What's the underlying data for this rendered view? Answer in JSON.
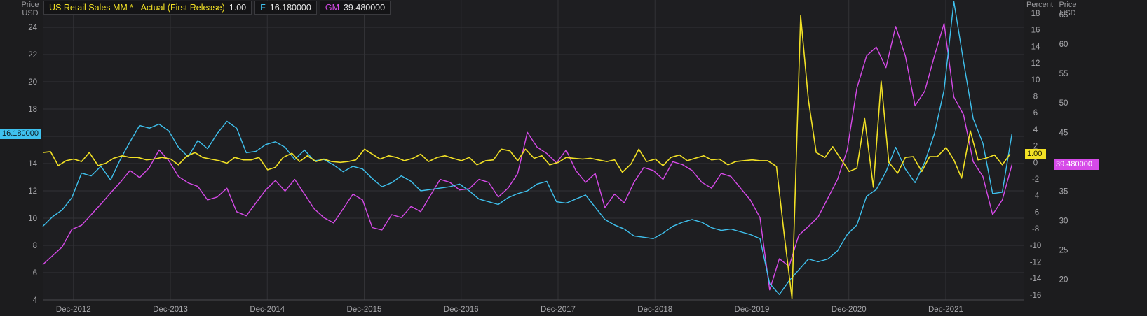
{
  "legend": [
    {
      "name": "US Retail Sales MM * - Actual (First Release)",
      "value": "1.00",
      "color": "#f2e125"
    },
    {
      "name": "F",
      "value": "16.180000",
      "color": "#3fc1ee"
    },
    {
      "name": "GM",
      "value": "39.480000",
      "color": "#d64ae8"
    }
  ],
  "axes": {
    "left_title_1": "Price",
    "left_title_2": "USD",
    "right1_title": "Percent",
    "right2_title_1": "Price",
    "right2_title_2": "USD"
  },
  "tags": {
    "left": "16.180000",
    "right1": "1.00",
    "right2": "39.480000"
  },
  "colors": {
    "background": "#1c1c1e",
    "retail": "#f2e125",
    "f": "#3fc1ee",
    "gm": "#d64ae8",
    "grid": "#323236"
  },
  "chart_data": {
    "type": "line",
    "x_ticks": [
      "Dec-2012",
      "Dec-2013",
      "Dec-2014",
      "Dec-2015",
      "Dec-2016",
      "Dec-2017",
      "Dec-2018",
      "Dec-2019",
      "Dec-2020",
      "Dec-2021"
    ],
    "x_range": [
      2012.6,
      2022.72
    ],
    "left_axis": {
      "unit": "Price USD",
      "range": [
        4,
        26
      ],
      "ticks": [
        4,
        6,
        8,
        10,
        12,
        14,
        16,
        18,
        20,
        22,
        24
      ]
    },
    "right_axis_percent": {
      "unit": "Percent",
      "range": [
        -16.6,
        19.6
      ],
      "ticks": [
        -16,
        -14,
        -12,
        -10,
        -8,
        -6,
        -4,
        -2,
        0,
        2,
        4,
        6,
        8,
        10,
        12,
        14,
        16,
        18
      ]
    },
    "right_axis_price": {
      "unit": "Price USD",
      "range": [
        16.5,
        67.5
      ],
      "ticks": [
        20,
        25,
        30,
        35,
        40,
        45,
        50,
        55,
        60,
        65
      ]
    },
    "series": [
      {
        "name": "US Retail Sales MM * - Actual (First Release)",
        "axis": "right_axis_percent",
        "x": [
          2012.6,
          2012.68,
          2012.76,
          2012.84,
          2012.92,
          2013.0,
          2013.08,
          2013.17,
          2013.25,
          2013.33,
          2013.42,
          2013.5,
          2013.58,
          2013.67,
          2013.75,
          2013.83,
          2013.92,
          2014.0,
          2014.08,
          2014.17,
          2014.25,
          2014.33,
          2014.42,
          2014.5,
          2014.58,
          2014.67,
          2014.75,
          2014.83,
          2014.92,
          2015.0,
          2015.08,
          2015.17,
          2015.25,
          2015.33,
          2015.42,
          2015.5,
          2015.58,
          2015.67,
          2015.75,
          2015.83,
          2015.92,
          2016.0,
          2016.08,
          2016.17,
          2016.25,
          2016.33,
          2016.42,
          2016.5,
          2016.58,
          2016.67,
          2016.75,
          2016.83,
          2016.92,
          2017.0,
          2017.08,
          2017.17,
          2017.25,
          2017.33,
          2017.42,
          2017.5,
          2017.58,
          2017.67,
          2017.75,
          2017.83,
          2017.92,
          2018.0,
          2018.08,
          2018.17,
          2018.25,
          2018.33,
          2018.42,
          2018.5,
          2018.58,
          2018.67,
          2018.75,
          2018.83,
          2018.92,
          2019.0,
          2019.08,
          2019.17,
          2019.25,
          2019.33,
          2019.42,
          2019.5,
          2019.58,
          2019.67,
          2019.75,
          2019.83,
          2019.92,
          2020.0,
          2020.08,
          2020.17,
          2020.25,
          2020.33,
          2020.42,
          2020.5,
          2020.58,
          2020.67,
          2020.75,
          2020.83,
          2020.92,
          2021.0,
          2021.08,
          2021.17,
          2021.25,
          2021.33,
          2021.42,
          2021.5,
          2021.58,
          2021.67,
          2021.75,
          2021.83,
          2021.92,
          2022.0,
          2022.08,
          2022.17,
          2022.25,
          2022.33,
          2022.42,
          2022.5,
          2022.58
        ],
        "values": [
          1.2,
          1.3,
          -0.4,
          0.2,
          0.4,
          0.1,
          1.2,
          -0.4,
          -0.1,
          0.5,
          0.8,
          0.6,
          0.6,
          0.3,
          0.4,
          0.6,
          0.4,
          -0.3,
          0.7,
          1.2,
          0.6,
          0.4,
          0.2,
          -0.1,
          0.6,
          0.3,
          0.3,
          0.6,
          -0.9,
          -0.6,
          0.6,
          1.1,
          0.1,
          0.8,
          0.1,
          0.4,
          0.1,
          0.0,
          0.1,
          0.3,
          1.6,
          1.0,
          0.4,
          0.8,
          0.6,
          0.2,
          0.5,
          1.0,
          0.1,
          0.6,
          0.8,
          0.5,
          0.2,
          0.6,
          -0.3,
          0.2,
          0.3,
          1.6,
          1.4,
          0.2,
          1.6,
          0.5,
          0.8,
          -0.3,
          0.0,
          0.6,
          0.5,
          0.4,
          0.5,
          0.3,
          0.1,
          0.3,
          -1.2,
          -0.2,
          1.6,
          0.1,
          0.4,
          -0.4,
          0.6,
          0.9,
          0.2,
          0.5,
          0.8,
          0.3,
          0.4,
          -0.3,
          0.1,
          0.2,
          0.3,
          0.2,
          0.2,
          -0.5,
          -8.7,
          -16.4,
          17.7,
          7.5,
          1.2,
          0.6,
          1.9,
          0.5,
          -1.1,
          -0.7,
          5.3,
          -3.0,
          9.8,
          0.0,
          -1.3,
          0.6,
          0.7,
          -1.1,
          0.7,
          0.7,
          1.8,
          0.3,
          -1.9,
          3.8,
          0.3,
          0.5,
          0.9,
          -0.3,
          1.0
        ]
      },
      {
        "name": "F",
        "axis": "left_axis",
        "x": [
          2012.6,
          2012.7,
          2012.8,
          2012.9,
          2013.0,
          2013.1,
          2013.2,
          2013.3,
          2013.4,
          2013.5,
          2013.6,
          2013.7,
          2013.8,
          2013.9,
          2014.0,
          2014.1,
          2014.2,
          2014.3,
          2014.4,
          2014.5,
          2014.6,
          2014.7,
          2014.8,
          2014.9,
          2015.0,
          2015.1,
          2015.2,
          2015.3,
          2015.4,
          2015.5,
          2015.6,
          2015.7,
          2015.8,
          2015.9,
          2016.0,
          2016.1,
          2016.2,
          2016.3,
          2016.4,
          2016.5,
          2016.6,
          2016.7,
          2016.8,
          2016.9,
          2017.0,
          2017.1,
          2017.2,
          2017.3,
          2017.4,
          2017.5,
          2017.6,
          2017.7,
          2017.8,
          2017.9,
          2018.0,
          2018.1,
          2018.2,
          2018.3,
          2018.4,
          2018.5,
          2018.6,
          2018.7,
          2018.8,
          2018.9,
          2019.0,
          2019.1,
          2019.2,
          2019.3,
          2019.4,
          2019.5,
          2019.6,
          2019.7,
          2019.8,
          2019.9,
          2020.0,
          2020.1,
          2020.2,
          2020.3,
          2020.4,
          2020.5,
          2020.6,
          2020.7,
          2020.8,
          2020.9,
          2021.0,
          2021.1,
          2021.2,
          2021.3,
          2021.4,
          2021.5,
          2021.6,
          2021.7,
          2021.8,
          2021.9,
          2022.0,
          2022.1,
          2022.2,
          2022.3,
          2022.4,
          2022.5,
          2022.6
        ],
        "values": [
          9.4,
          10.1,
          10.6,
          11.5,
          13.3,
          13.1,
          13.8,
          12.8,
          14.3,
          15.6,
          16.8,
          16.6,
          16.9,
          16.4,
          15.2,
          14.5,
          15.7,
          15.1,
          16.2,
          17.1,
          16.6,
          14.8,
          14.9,
          15.4,
          15.6,
          15.2,
          14.3,
          15.0,
          14.2,
          14.3,
          13.9,
          13.4,
          13.8,
          13.6,
          12.9,
          12.3,
          12.6,
          13.1,
          12.7,
          12.0,
          12.1,
          12.2,
          12.3,
          12.5,
          12.0,
          11.4,
          11.2,
          11.0,
          11.5,
          11.8,
          12.0,
          12.5,
          12.7,
          11.2,
          11.1,
          11.4,
          11.7,
          10.8,
          9.9,
          9.5,
          9.2,
          8.7,
          8.6,
          8.5,
          8.9,
          9.4,
          9.7,
          9.9,
          9.7,
          9.3,
          9.1,
          9.2,
          9.0,
          8.8,
          8.5,
          5.2,
          4.4,
          5.4,
          6.2,
          7.0,
          6.8,
          7.0,
          7.6,
          8.8,
          9.5,
          11.6,
          12.1,
          13.4,
          15.2,
          13.6,
          12.6,
          14.1,
          16.2,
          19.4,
          25.9,
          21.5,
          17.3,
          15.5,
          11.8,
          11.9,
          16.2
        ]
      },
      {
        "name": "GM",
        "axis": "right_axis_price",
        "x": [
          2012.6,
          2012.7,
          2012.8,
          2012.9,
          2013.0,
          2013.1,
          2013.2,
          2013.3,
          2013.4,
          2013.5,
          2013.6,
          2013.7,
          2013.8,
          2013.9,
          2014.0,
          2014.1,
          2014.2,
          2014.3,
          2014.4,
          2014.5,
          2014.6,
          2014.7,
          2014.8,
          2014.9,
          2015.0,
          2015.1,
          2015.2,
          2015.3,
          2015.4,
          2015.5,
          2015.6,
          2015.7,
          2015.8,
          2015.9,
          2016.0,
          2016.1,
          2016.2,
          2016.3,
          2016.4,
          2016.5,
          2016.6,
          2016.7,
          2016.8,
          2016.9,
          2017.0,
          2017.1,
          2017.2,
          2017.3,
          2017.4,
          2017.5,
          2017.6,
          2017.7,
          2017.8,
          2017.9,
          2018.0,
          2018.1,
          2018.2,
          2018.3,
          2018.4,
          2018.5,
          2018.6,
          2018.7,
          2018.8,
          2018.9,
          2019.0,
          2019.1,
          2019.2,
          2019.3,
          2019.4,
          2019.5,
          2019.6,
          2019.7,
          2019.8,
          2019.9,
          2020.0,
          2020.1,
          2020.2,
          2020.3,
          2020.4,
          2020.5,
          2020.6,
          2020.7,
          2020.8,
          2020.9,
          2021.0,
          2021.1,
          2021.2,
          2021.3,
          2021.4,
          2021.5,
          2021.6,
          2021.7,
          2021.8,
          2021.9,
          2022.0,
          2022.1,
          2022.2,
          2022.3,
          2022.4,
          2022.5,
          2022.6
        ],
        "values": [
          22.5,
          24.0,
          25.5,
          28.5,
          29.2,
          31.0,
          32.8,
          34.7,
          36.5,
          38.5,
          37.3,
          39.0,
          42.0,
          40.2,
          37.5,
          36.4,
          35.8,
          33.5,
          34.0,
          35.5,
          31.5,
          30.8,
          33.0,
          35.2,
          36.8,
          35.0,
          37.0,
          34.5,
          32.0,
          30.5,
          29.6,
          32.0,
          34.5,
          33.5,
          28.8,
          28.4,
          31.0,
          30.5,
          32.4,
          31.5,
          34.3,
          37.0,
          36.5,
          35.2,
          35.4,
          37.0,
          36.5,
          34.0,
          35.5,
          38.0,
          45.0,
          42.5,
          41.4,
          39.8,
          42.0,
          38.5,
          36.5,
          38.0,
          32.2,
          34.5,
          33.0,
          36.5,
          39.0,
          38.5,
          37.0,
          40.0,
          39.5,
          38.5,
          36.5,
          35.5,
          38.0,
          37.5,
          35.5,
          33.5,
          30.5,
          18.2,
          23.5,
          22.2,
          27.5,
          29.0,
          30.6,
          33.8,
          37.0,
          42.0,
          52.5,
          58.0,
          59.5,
          56.0,
          63.0,
          58.0,
          49.5,
          52.0,
          58.0,
          63.5,
          51.0,
          48.0,
          40.0,
          37.5,
          31.0,
          33.5,
          39.5
        ]
      }
    ]
  }
}
